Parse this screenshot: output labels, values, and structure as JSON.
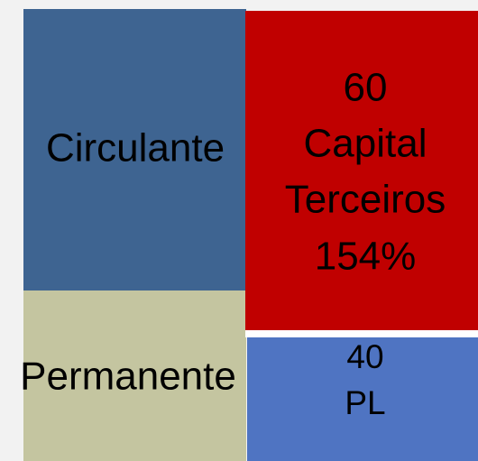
{
  "left": {
    "top": {
      "label": "Circulante"
    },
    "bottom": {
      "label": "Permanente"
    }
  },
  "right": {
    "top": {
      "lines": [
        "60",
        "Capital",
        "Terceiros",
        "154%"
      ]
    },
    "bottom": {
      "lines": [
        "40",
        "PL"
      ]
    }
  }
}
